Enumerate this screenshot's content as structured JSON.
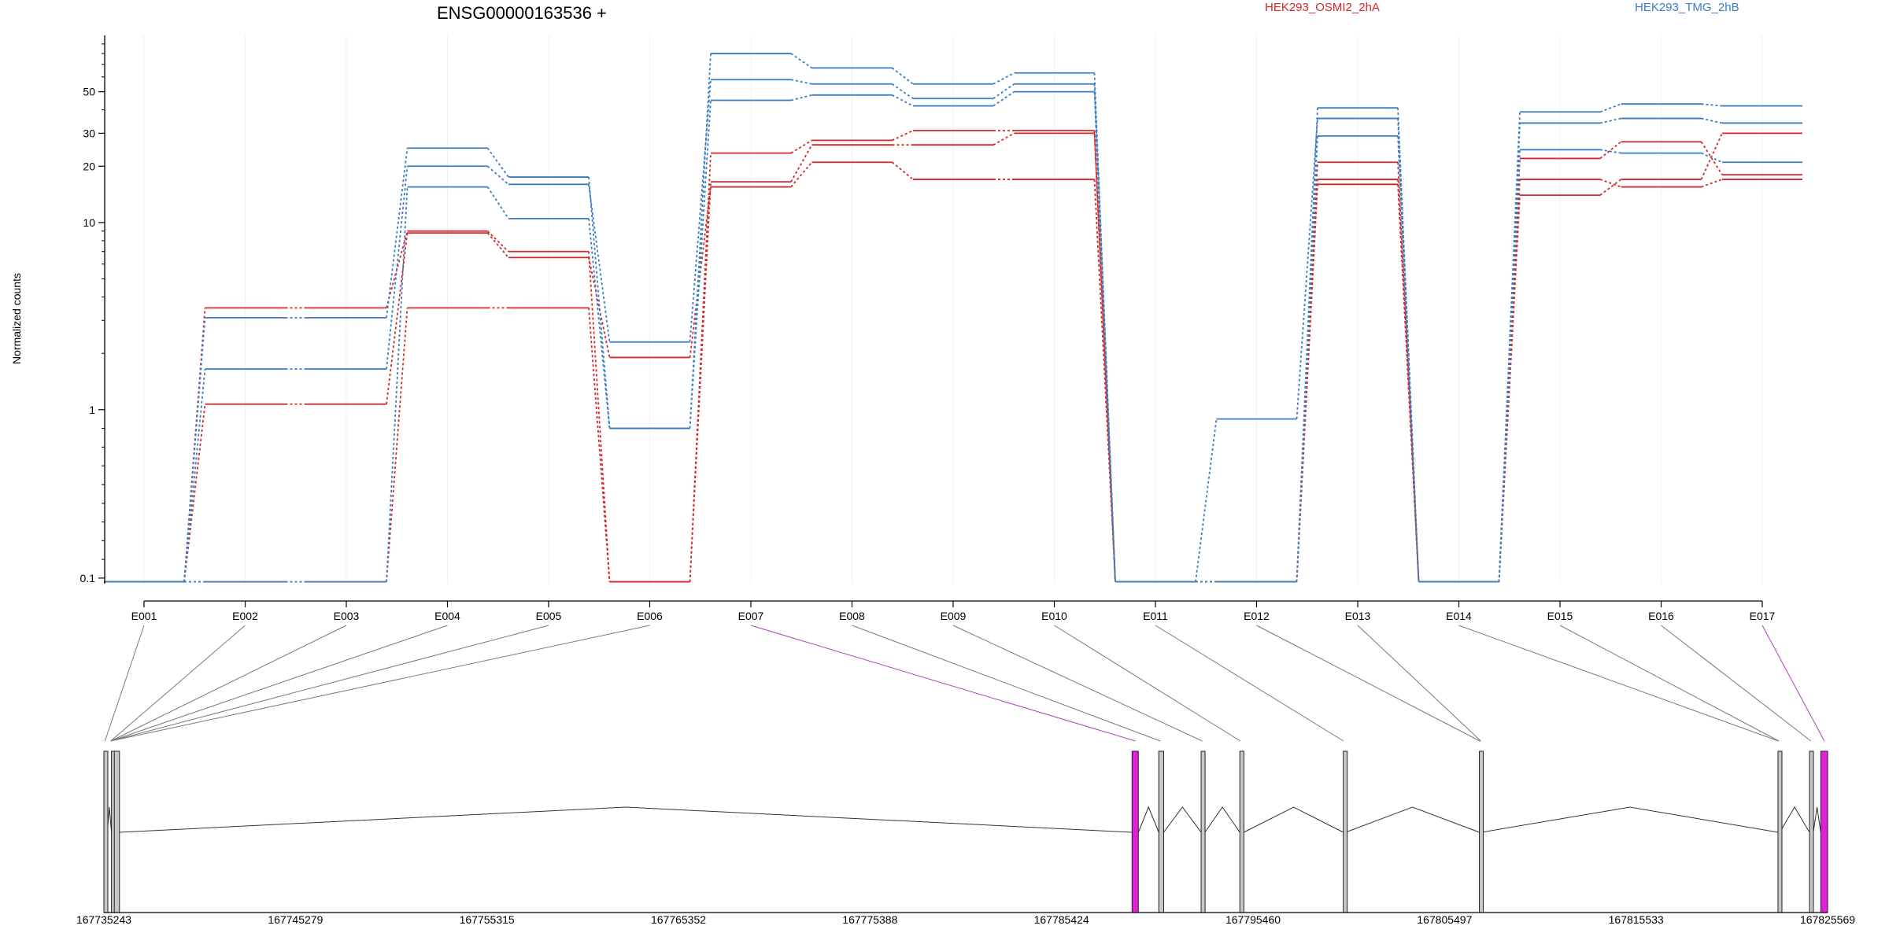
{
  "chart_data": {
    "type": "line",
    "title": "ENSG00000163536 +",
    "ylabel": "Normalized counts",
    "yscale": "log",
    "yticks": [
      "0.1",
      "1",
      "10",
      "20",
      "30",
      "50"
    ],
    "ylim": [
      0.07,
      100
    ],
    "categories": [
      "E001",
      "E002",
      "E003",
      "E004",
      "E005",
      "E006",
      "E007",
      "E008",
      "E009",
      "E010",
      "E011",
      "E012",
      "E013",
      "E014",
      "E015",
      "E016",
      "E017"
    ],
    "legend": [
      {
        "name": "HEK293_OSMI2_2hA",
        "color": "#d62728"
      },
      {
        "name": "HEK293_TMG_2hB",
        "color": "#3a7dc0"
      }
    ],
    "series": [
      {
        "group": "HEK293_OSMI2_2hA",
        "color": "#d62728",
        "values": [
          0.08,
          3.5,
          3.5,
          9,
          7,
          0.08,
          16.5,
          26,
          26,
          30,
          0.08,
          0.08,
          16,
          0.08,
          14,
          17,
          30
        ]
      },
      {
        "group": "HEK293_OSMI2_2hA",
        "color": "#d62728",
        "values": [
          0.08,
          1.07,
          1.07,
          8.8,
          6.5,
          1.9,
          15.5,
          21,
          17,
          17,
          0.08,
          0.08,
          17,
          0.08,
          17,
          15.5,
          17
        ]
      },
      {
        "group": "HEK293_OSMI2_2hA",
        "color": "#d62728",
        "values": [
          0.08,
          0.08,
          0.08,
          3.5,
          3.5,
          0.08,
          23.5,
          27.5,
          31,
          31,
          0.08,
          0.08,
          21,
          0.08,
          22,
          27,
          18
        ]
      },
      {
        "group": "HEK293_TMG_2hB",
        "color": "#3a7dc0",
        "values": [
          0.08,
          3.1,
          3.1,
          25,
          17.5,
          0.9,
          80,
          67,
          55,
          63,
          0.08,
          0.08,
          41,
          0.08,
          39,
          43,
          42
        ]
      },
      {
        "group": "HEK293_TMG_2hB",
        "color": "#3a7dc0",
        "values": [
          0.08,
          1.65,
          1.65,
          20,
          16,
          2.3,
          58,
          55,
          46,
          55,
          0.08,
          0.95,
          36,
          0.08,
          34,
          36,
          34
        ]
      },
      {
        "group": "HEK293_TMG_2hB",
        "color": "#3a7dc0",
        "values": [
          0.08,
          0.08,
          0.08,
          15.5,
          10.5,
          0.9,
          45,
          48,
          42,
          50,
          0.08,
          0.08,
          29,
          0.08,
          24.5,
          23.5,
          21
        ]
      }
    ],
    "gene_model": {
      "coordinate_labels": [
        "167735243",
        "167745279",
        "167755315",
        "167765352",
        "167775388",
        "167785424",
        "167795460",
        "167805497",
        "167815533",
        "167825569"
      ],
      "coordinate_values": [
        167735243,
        167745279,
        167755315,
        167765352,
        167775388,
        167785424,
        167795460,
        167805497,
        167815533,
        167825569
      ],
      "exons": [
        {
          "start": 167735243,
          "end": 167735420,
          "highlight": false
        },
        {
          "start": 167735640,
          "end": 167735790,
          "highlight": false
        },
        {
          "start": 167735790,
          "end": 167736060,
          "highlight": false
        },
        {
          "start": 167789120,
          "end": 167789450,
          "highlight": true
        },
        {
          "start": 167790520,
          "end": 167790780,
          "highlight": false
        },
        {
          "start": 167792740,
          "end": 167792940,
          "highlight": false
        },
        {
          "start": 167794770,
          "end": 167794980,
          "highlight": false
        },
        {
          "start": 167800190,
          "end": 167800310,
          "highlight": false
        },
        {
          "start": 167807320,
          "end": 167807440,
          "highlight": false
        },
        {
          "start": 167822970,
          "end": 167823060,
          "highlight": false
        },
        {
          "start": 167824620,
          "end": 167824820,
          "highlight": false
        },
        {
          "start": 167825210,
          "end": 167825569,
          "highlight": true
        }
      ],
      "category_links": [
        {
          "category": "E001",
          "position": 167735300,
          "highlight": false
        },
        {
          "category": "E002",
          "position": 167735600,
          "highlight": false
        },
        {
          "category": "E003",
          "position": 167735600,
          "highlight": false
        },
        {
          "category": "E004",
          "position": 167735600,
          "highlight": false
        },
        {
          "category": "E005",
          "position": 167735600,
          "highlight": false
        },
        {
          "category": "E006",
          "position": 167735600,
          "highlight": false
        },
        {
          "category": "E007",
          "position": 167789300,
          "highlight": true
        },
        {
          "category": "E008",
          "position": 167790600,
          "highlight": false
        },
        {
          "category": "E009",
          "position": 167792800,
          "highlight": false
        },
        {
          "category": "E010",
          "position": 167794800,
          "highlight": false
        },
        {
          "category": "E011",
          "position": 167800200,
          "highlight": false
        },
        {
          "category": "E012",
          "position": 167807350,
          "highlight": false
        },
        {
          "category": "E013",
          "position": 167807400,
          "highlight": false
        },
        {
          "category": "E014",
          "position": 167823000,
          "highlight": false
        },
        {
          "category": "E015",
          "position": 167823020,
          "highlight": false
        },
        {
          "category": "E016",
          "position": 167824700,
          "highlight": false
        },
        {
          "category": "E017",
          "position": 167825400,
          "highlight": true
        }
      ]
    }
  }
}
